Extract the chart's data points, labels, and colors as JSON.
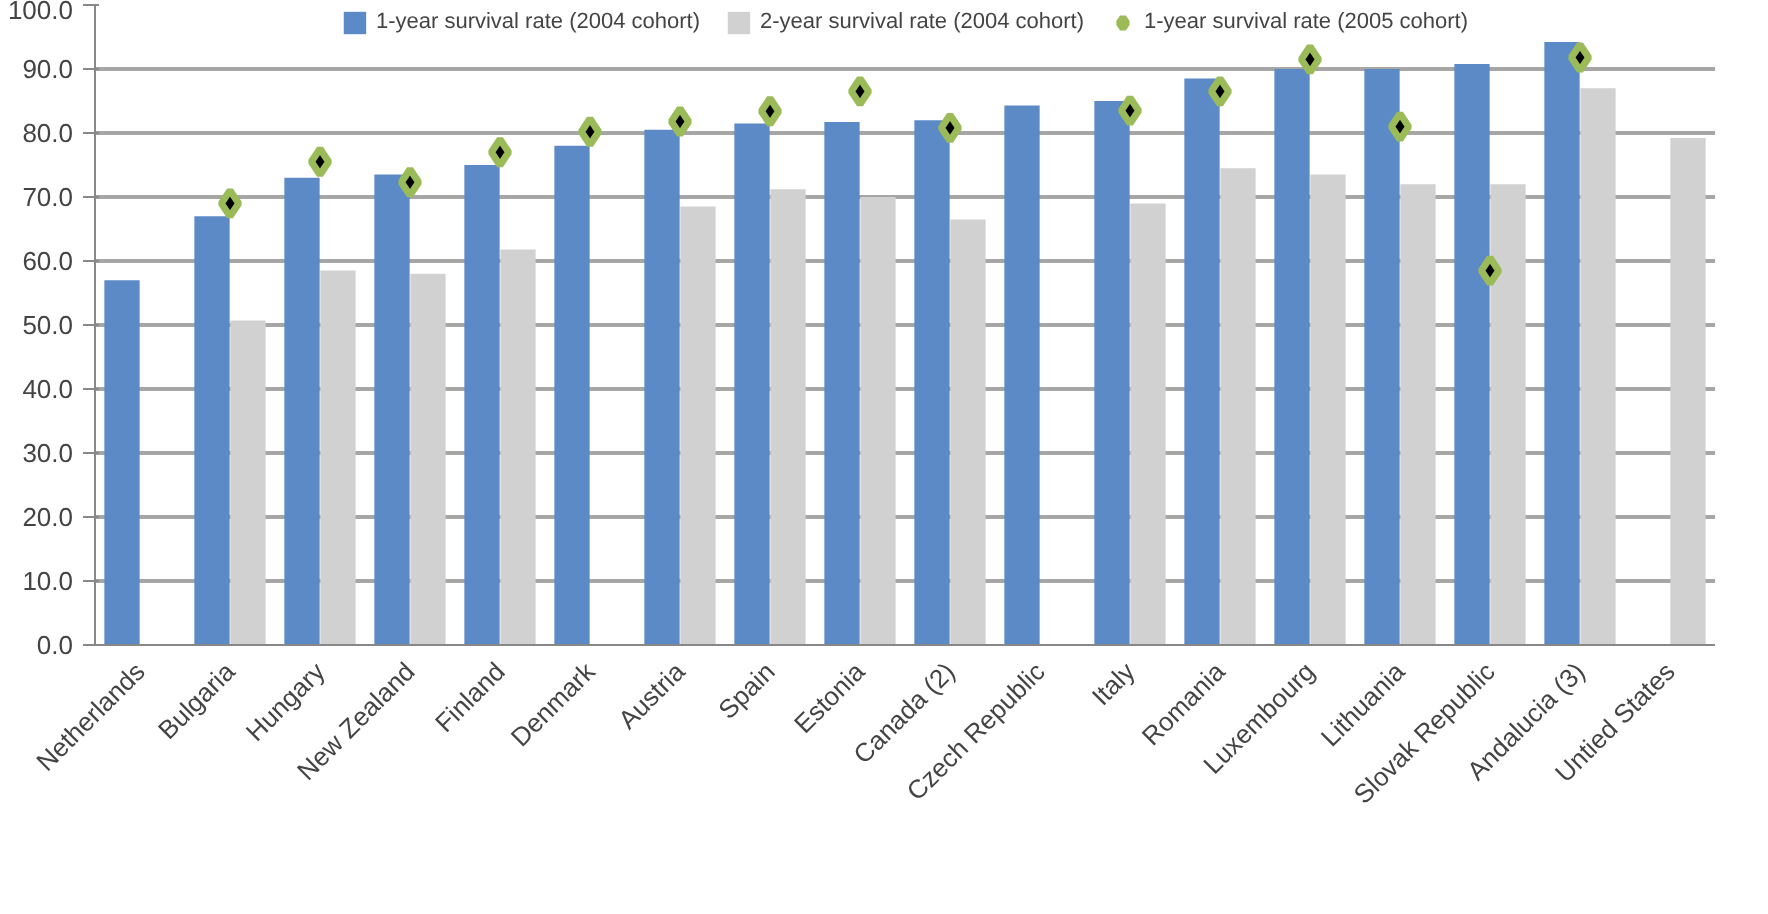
{
  "chart_data": {
    "type": "bar",
    "categories": [
      "Netherlands",
      "Bulgaria",
      "Hungary",
      "New Zealand",
      "Finland",
      "Denmark",
      "Austria",
      "Spain",
      "Estonia",
      "Canada (2)",
      "Czech Republic",
      "Italy",
      "Romania",
      "Luxembourg",
      "Lithuania",
      "Slovak Republic",
      "Andalucia (3)",
      "Untied States"
    ],
    "series": [
      {
        "name": "1-year survival rate (2004 cohort)",
        "color": "#5b8ac6",
        "values": [
          57.0,
          67.0,
          73.0,
          73.5,
          75.0,
          78.0,
          80.5,
          81.5,
          81.7,
          82.0,
          84.3,
          85.0,
          88.5,
          90.0,
          90.0,
          90.8,
          94.2,
          null
        ]
      },
      {
        "name": "2-year survival rate (2004 cohort)",
        "color": "#d0d1d0",
        "values": [
          null,
          50.7,
          58.5,
          58.0,
          61.8,
          null,
          68.5,
          71.2,
          70.0,
          66.5,
          null,
          69.0,
          74.5,
          73.5,
          72.0,
          72.0,
          87.0,
          79.2
        ]
      },
      {
        "name": "1-year survival rate (2005 cohort)",
        "type": "scatter",
        "marker": "diamond",
        "color": "#9bbb59",
        "values": [
          null,
          69.0,
          75.5,
          72.3,
          77.0,
          80.2,
          81.8,
          83.4,
          86.5,
          80.8,
          null,
          83.5,
          86.5,
          91.5,
          81.0,
          58.5,
          91.8,
          null
        ]
      }
    ],
    "ylim": [
      0,
      100
    ],
    "yticks": [
      {
        "value": 0,
        "label": "0.0"
      },
      {
        "value": 10,
        "label": "10.0"
      },
      {
        "value": 20,
        "label": "20.0"
      },
      {
        "value": 30,
        "label": "30.0"
      },
      {
        "value": 40,
        "label": "40.0"
      },
      {
        "value": 50,
        "label": "50.0"
      },
      {
        "value": 60,
        "label": "60.0"
      },
      {
        "value": 70,
        "label": "70.0"
      },
      {
        "value": 80,
        "label": "80.0"
      },
      {
        "value": 90,
        "label": "90.0"
      },
      {
        "value": 100,
        "label": "100.0"
      }
    ],
    "grid": "y",
    "legend": "top"
  }
}
